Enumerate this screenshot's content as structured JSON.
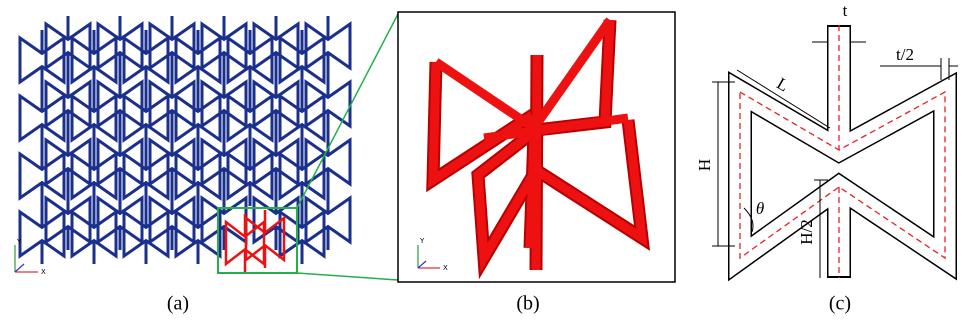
{
  "panels": [
    {
      "label": "(a)",
      "axis": {
        "y": "Y",
        "x": "X"
      }
    },
    {
      "label": "(b)",
      "axis": {
        "y": "Y",
        "x": "X"
      }
    },
    {
      "label": "(c)",
      "dimensions": {
        "t": "t",
        "half_t": "t/2",
        "L": "L",
        "H": "H",
        "theta": "θ",
        "half_H": "H/2"
      }
    }
  ]
}
